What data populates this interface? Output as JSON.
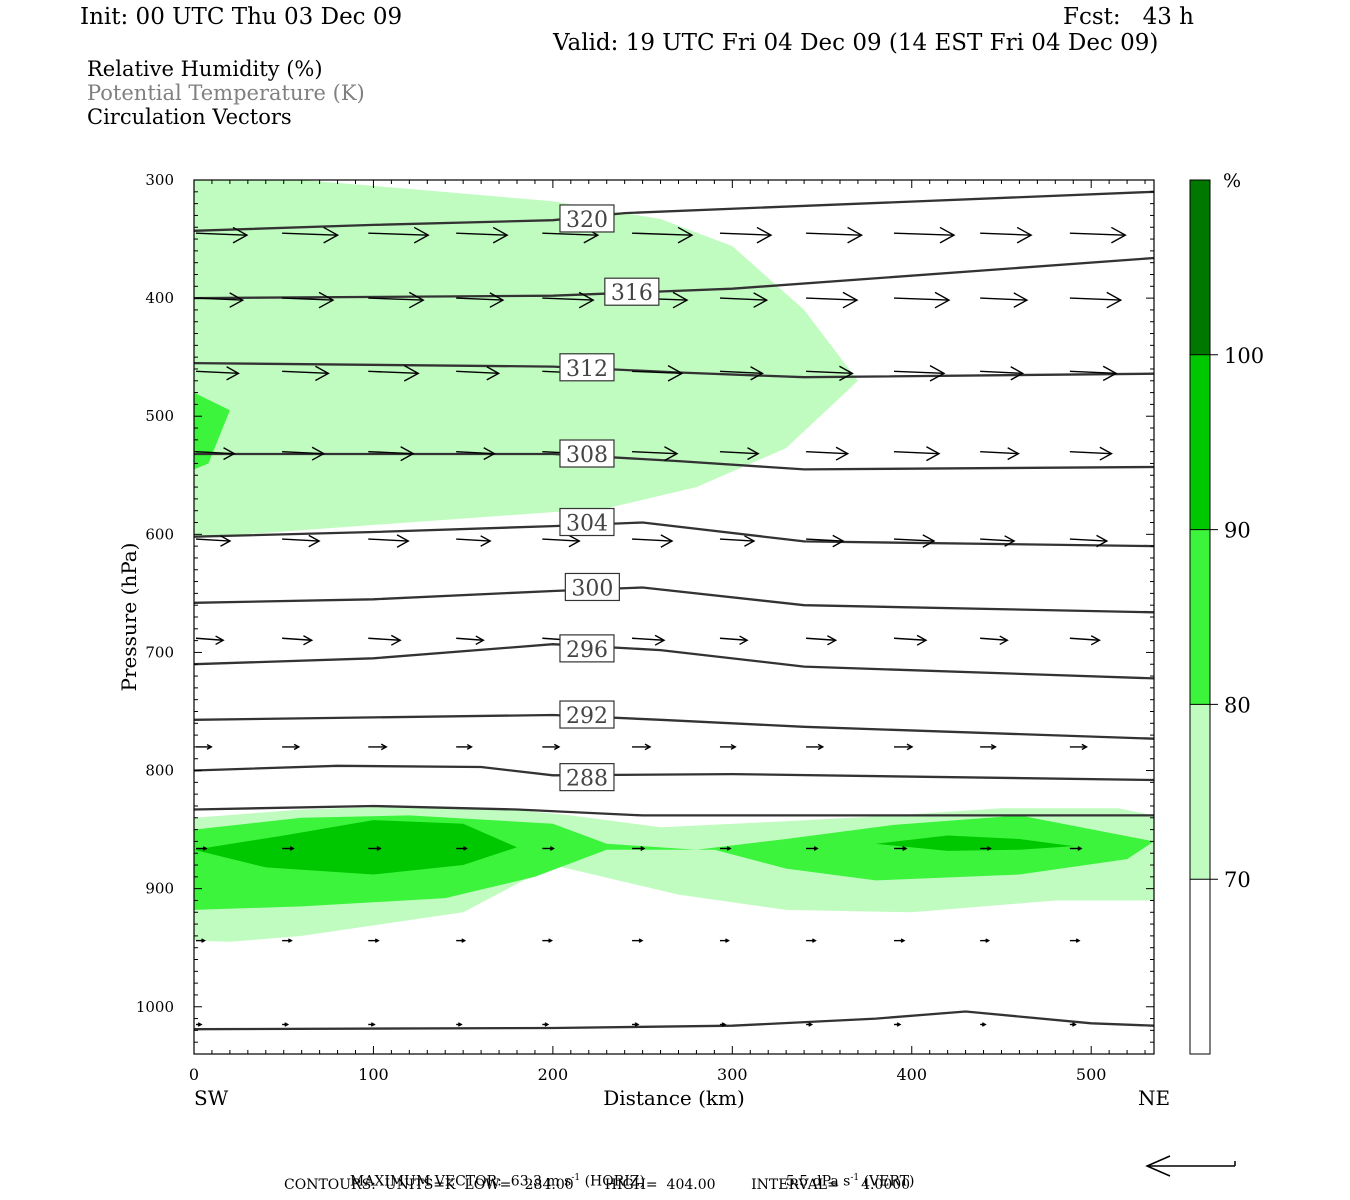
{
  "header": {
    "init": "Init: 00 UTC Thu 03 Dec 09",
    "fcst": "Fcst:   43 h",
    "valid": "Valid: 19 UTC Fri 04 Dec 09 (14 EST Fri 04 Dec 09)"
  },
  "legend": {
    "fields": [
      "Relative Humidity (%)",
      "Potential Temperature (K)",
      "Circulation Vectors"
    ],
    "field_colors": [
      "#000000",
      "#808080",
      "#000000"
    ]
  },
  "colorbar": {
    "unit": "%",
    "levels": [
      70,
      80,
      90,
      100
    ],
    "colors": [
      "#ffffff",
      "#c0fcc0",
      "#3cf43c",
      "#00c800",
      "#007800"
    ]
  },
  "footer": {
    "max_vector_label": "MAXIMUM VECTOR:",
    "horiz_value": "63.3",
    "horiz_unit_base": "m s",
    "horiz_unit_exp": "-1",
    "horiz_tag": "(HORIZ)",
    "vert_value": "5.5",
    "vert_unit_base": "dPa s",
    "vert_unit_exp": "-1",
    "vert_tag": "(VERT)",
    "contours": "CONTOURS:  UNITS=K  LOW=   284.00       HIGH=  404.00        INTERVAL=     4.0000"
  },
  "chart_data": {
    "type": "cross-section",
    "xlabel": "Distance (km)",
    "ylabel": "Pressure (hPa)",
    "xlim": [
      0,
      535
    ],
    "ylim": [
      1040,
      300
    ],
    "x_ticks": [
      0,
      100,
      200,
      300,
      400,
      500
    ],
    "y_ticks": [
      300,
      400,
      500,
      600,
      700,
      800,
      900,
      1000
    ],
    "end_labels": {
      "left": "SW",
      "right": "NE"
    },
    "theta_contours": [
      {
        "value": 320,
        "label": "320",
        "points": [
          [
            0,
            343
          ],
          [
            100,
            338
          ],
          [
            200,
            334
          ],
          [
            240,
            328
          ],
          [
            535,
            310
          ]
        ],
        "label_at": [
          219,
          333
        ]
      },
      {
        "value": 316,
        "label": "316",
        "points": [
          [
            0,
            400
          ],
          [
            200,
            398
          ],
          [
            300,
            392
          ],
          [
            535,
            366
          ]
        ],
        "label_at": [
          244,
          395
        ]
      },
      {
        "value": 312,
        "label": "312",
        "points": [
          [
            0,
            455
          ],
          [
            200,
            458
          ],
          [
            270,
            463
          ],
          [
            340,
            467
          ],
          [
            535,
            464
          ]
        ],
        "label_at": [
          219,
          459
        ]
      },
      {
        "value": 308,
        "label": "308",
        "points": [
          [
            0,
            532
          ],
          [
            200,
            532
          ],
          [
            270,
            538
          ],
          [
            340,
            545
          ],
          [
            535,
            543
          ]
        ],
        "label_at": [
          219,
          532
        ]
      },
      {
        "value": 304,
        "label": "304",
        "points": [
          [
            0,
            602
          ],
          [
            100,
            598
          ],
          [
            200,
            593
          ],
          [
            250,
            590
          ],
          [
            340,
            606
          ],
          [
            535,
            610
          ]
        ],
        "label_at": [
          219,
          590
        ]
      },
      {
        "value": 300,
        "label": "300",
        "points": [
          [
            0,
            658
          ],
          [
            100,
            655
          ],
          [
            200,
            648
          ],
          [
            250,
            645
          ],
          [
            340,
            660
          ],
          [
            535,
            666
          ]
        ],
        "label_at": [
          222,
          645
        ]
      },
      {
        "value": 296,
        "label": "296",
        "points": [
          [
            0,
            710
          ],
          [
            100,
            705
          ],
          [
            200,
            693
          ],
          [
            260,
            698
          ],
          [
            340,
            712
          ],
          [
            535,
            722
          ]
        ],
        "label_at": [
          219,
          697
        ]
      },
      {
        "value": 292,
        "label": "292",
        "points": [
          [
            0,
            757
          ],
          [
            100,
            755
          ],
          [
            200,
            753
          ],
          [
            260,
            757
          ],
          [
            340,
            763
          ],
          [
            535,
            773
          ]
        ],
        "label_at": [
          219,
          753
        ]
      },
      {
        "value": 288,
        "label": "288",
        "points": [
          [
            0,
            800
          ],
          [
            80,
            796
          ],
          [
            160,
            797
          ],
          [
            200,
            804
          ],
          [
            300,
            803
          ],
          [
            535,
            808
          ]
        ],
        "label_at": [
          219,
          806
        ]
      },
      {
        "value": 284,
        "label": "",
        "points": [
          [
            0,
            833
          ],
          [
            100,
            830
          ],
          [
            180,
            833
          ],
          [
            250,
            838
          ],
          [
            535,
            838
          ]
        ],
        "label_at": null
      },
      {
        "value": 284,
        "label": "",
        "points": [
          [
            0,
            1019
          ],
          [
            200,
            1018
          ],
          [
            300,
            1016
          ],
          [
            380,
            1010
          ],
          [
            430,
            1004
          ],
          [
            500,
            1014
          ],
          [
            535,
            1016
          ]
        ],
        "label_at": null
      }
    ],
    "rh_regions": [
      {
        "level": 70,
        "points": [
          [
            0,
            300
          ],
          [
            60,
            300
          ],
          [
            100,
            305
          ],
          [
            200,
            318
          ],
          [
            260,
            333
          ],
          [
            300,
            356
          ],
          [
            320,
            383
          ],
          [
            340,
            410
          ],
          [
            370,
            470
          ],
          [
            330,
            527
          ],
          [
            280,
            560
          ],
          [
            230,
            578
          ],
          [
            0,
            603
          ]
        ]
      },
      {
        "level": 80,
        "points": [
          [
            0,
            480
          ],
          [
            20,
            495
          ],
          [
            8,
            540
          ],
          [
            0,
            545
          ]
        ]
      },
      {
        "level": 70,
        "points": [
          [
            0,
            840
          ],
          [
            60,
            833
          ],
          [
            120,
            830
          ],
          [
            170,
            832
          ],
          [
            210,
            838
          ],
          [
            260,
            848
          ],
          [
            330,
            843
          ],
          [
            390,
            838
          ],
          [
            450,
            832
          ],
          [
            515,
            832
          ],
          [
            535,
            838
          ],
          [
            535,
            910
          ],
          [
            480,
            910
          ],
          [
            400,
            920
          ],
          [
            330,
            918
          ],
          [
            270,
            905
          ],
          [
            200,
            880
          ],
          [
            150,
            920
          ],
          [
            60,
            940
          ],
          [
            20,
            945
          ],
          [
            0,
            944
          ]
        ]
      },
      {
        "level": 80,
        "points": [
          [
            0,
            850
          ],
          [
            60,
            840
          ],
          [
            120,
            838
          ],
          [
            200,
            845
          ],
          [
            230,
            862
          ],
          [
            280,
            867
          ],
          [
            330,
            858
          ],
          [
            390,
            846
          ],
          [
            460,
            838
          ],
          [
            535,
            860
          ],
          [
            520,
            875
          ],
          [
            460,
            888
          ],
          [
            380,
            893
          ],
          [
            330,
            883
          ],
          [
            290,
            867
          ],
          [
            230,
            867
          ],
          [
            190,
            890
          ],
          [
            140,
            908
          ],
          [
            60,
            915
          ],
          [
            0,
            918
          ]
        ]
      },
      {
        "level": 90,
        "points": [
          [
            0,
            867
          ],
          [
            50,
            855
          ],
          [
            100,
            842
          ],
          [
            150,
            845
          ],
          [
            180,
            865
          ],
          [
            150,
            880
          ],
          [
            100,
            888
          ],
          [
            40,
            882
          ]
        ]
      },
      {
        "level": 90,
        "points": [
          [
            380,
            862
          ],
          [
            420,
            855
          ],
          [
            460,
            858
          ],
          [
            490,
            864
          ],
          [
            460,
            867
          ],
          [
            420,
            868
          ]
        ]
      }
    ],
    "vector_rows": [
      {
        "p": 345,
        "len": 60
      },
      {
        "p": 400,
        "len": 55
      },
      {
        "p": 462,
        "len": 50
      },
      {
        "p": 530,
        "len": 45
      },
      {
        "p": 604,
        "len": 40
      },
      {
        "p": 688,
        "len": 32
      },
      {
        "p": 780,
        "len": 18
      },
      {
        "p": 866,
        "len": 12
      },
      {
        "p": 944,
        "len": 10
      },
      {
        "p": 1015,
        "len": 6
      }
    ],
    "vector_x": [
      0,
      48,
      96,
      145,
      193,
      243,
      292,
      340,
      389,
      437,
      487
    ]
  },
  "title": "",
  "subtitle": ""
}
